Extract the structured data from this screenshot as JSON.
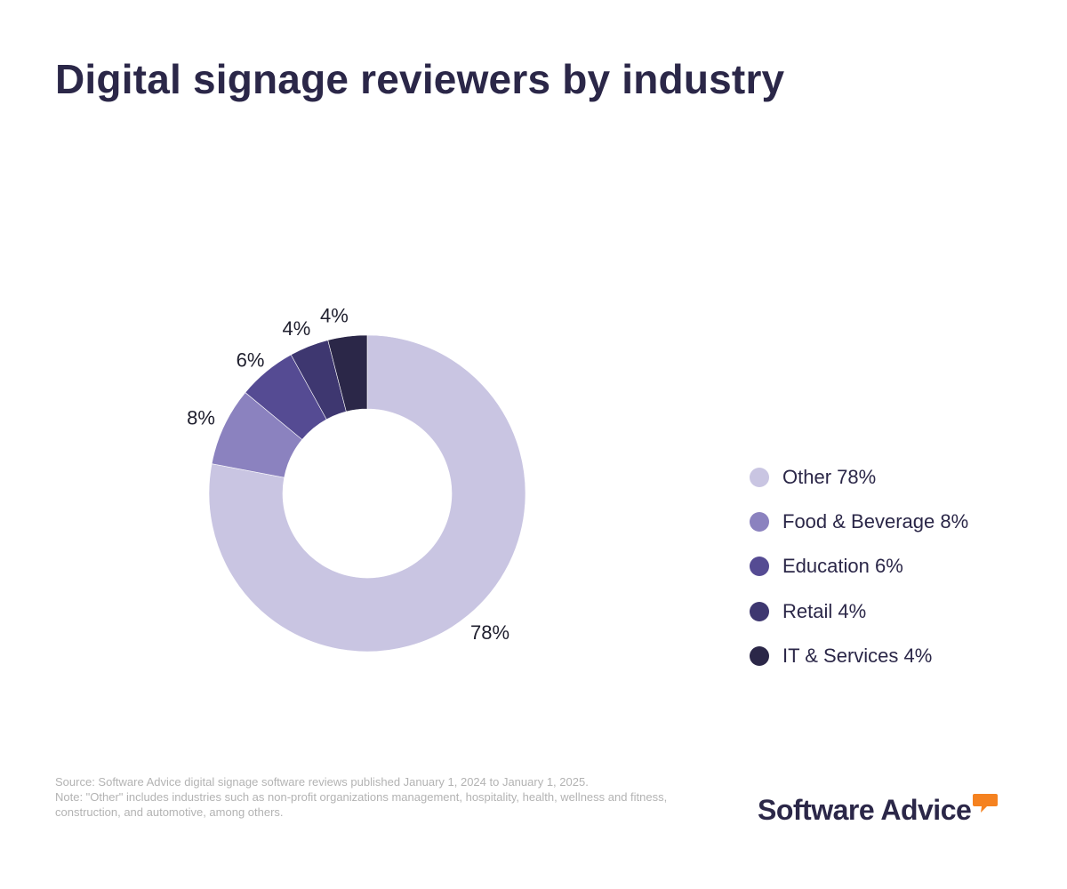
{
  "title": "Digital signage reviewers by industry",
  "chart_data": {
    "type": "donut",
    "title": "Digital signage reviewers by industry",
    "categories": [
      "Other",
      "Food & Beverage",
      "Education",
      "Retail",
      "IT & Services"
    ],
    "values": [
      78,
      8,
      6,
      4,
      4
    ],
    "labels": [
      "78%",
      "8%",
      "6%",
      "4%",
      "4%"
    ],
    "legend_labels": [
      "Other 78%",
      "Food & Beverage 8%",
      "Education 6%",
      "Retail 4%",
      "IT & Services 4%"
    ],
    "colors": [
      "#c9c5e2",
      "#8b82bf",
      "#554b93",
      "#3e3770",
      "#2b2748"
    ],
    "legend_placement": "right"
  },
  "footnote": {
    "source": "Source: Software Advice digital signage software reviews published January 1, 2024 to January 1, 2025.",
    "note": "Note: \"Other\" includes industries such as non-profit organizations management, hospitality, health, wellness and fitness, construction, and automotive, among others."
  },
  "brand": {
    "name": "Software Advice",
    "accent": "#f58220",
    "text_color": "#2b2748"
  }
}
